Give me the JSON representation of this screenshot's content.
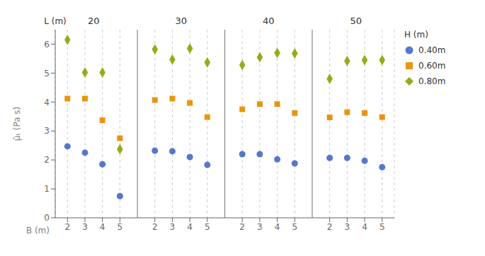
{
  "chart_data": {
    "type": "scatter",
    "x_label": "B (m)",
    "y_label": "μ̄ₜ (Pa s)",
    "group_label": "L (m)",
    "groups": [
      "20",
      "30",
      "40",
      "50"
    ],
    "categories": [
      "2",
      "3",
      "4",
      "5",
      "2",
      "3",
      "4",
      "5",
      "2",
      "3",
      "4",
      "5",
      "2",
      "3",
      "4",
      "5"
    ],
    "ylim": [
      0,
      6.5
    ],
    "yticks": [
      0,
      1,
      2,
      3,
      4,
      5,
      6
    ],
    "grid": "x",
    "legend": "right",
    "legend_title": "H (m)",
    "series": [
      {
        "name": "0.40m",
        "color": "#5577CC",
        "marker": "circle",
        "values": [
          2.47,
          2.25,
          1.85,
          0.75,
          2.32,
          2.3,
          2.1,
          1.83,
          2.2,
          2.2,
          2.02,
          1.88,
          2.07,
          2.07,
          1.97,
          1.75
        ]
      },
      {
        "name": "0.60m",
        "color": "#E8960F",
        "marker": "square",
        "values": [
          4.12,
          4.12,
          3.37,
          2.75,
          4.07,
          4.12,
          3.97,
          3.48,
          3.75,
          3.93,
          3.93,
          3.62,
          3.47,
          3.65,
          3.62,
          3.48
        ]
      },
      {
        "name": "0.80m",
        "color": "#8FAF1A",
        "marker": "diamond",
        "values": [
          6.15,
          5.02,
          5.02,
          2.37,
          5.82,
          5.47,
          5.85,
          5.37,
          5.28,
          5.55,
          5.7,
          5.68,
          4.8,
          5.42,
          5.45,
          5.45
        ]
      }
    ]
  }
}
